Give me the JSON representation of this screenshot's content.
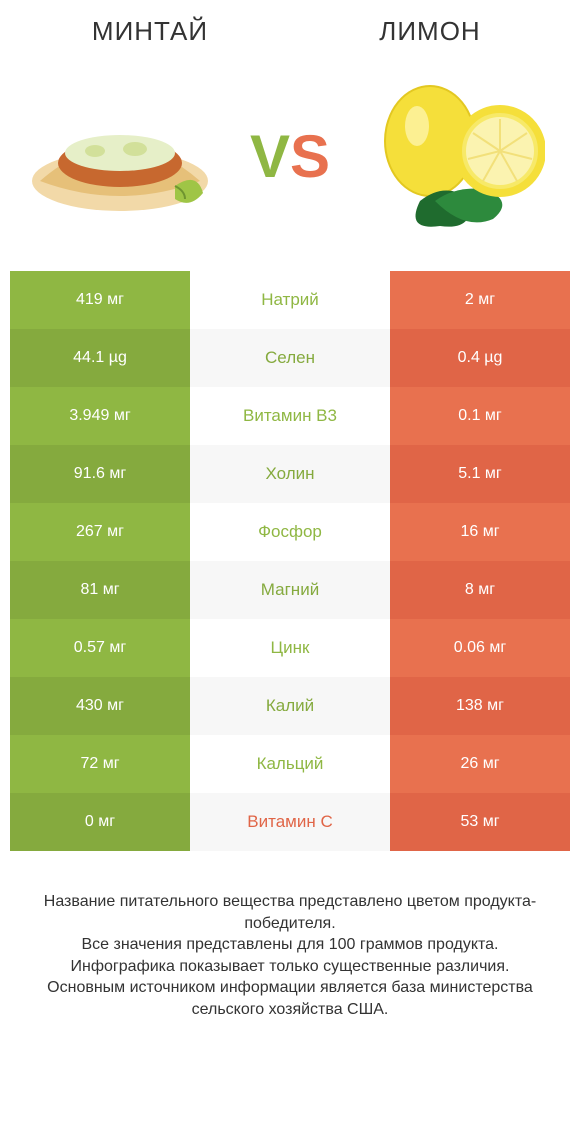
{
  "header": {
    "left": "МИНТАЙ",
    "right": "ЛИМОН"
  },
  "vs": {
    "v": "V",
    "s": "S"
  },
  "colors": {
    "green_a": "#8fb743",
    "green_b": "#85aa3e",
    "orange_a": "#e8714f",
    "orange_b": "#e06547",
    "text_dark": "#333333",
    "white": "#ffffff"
  },
  "rows": [
    {
      "left": "419 мг",
      "mid": "Натрий",
      "right": "2 мг",
      "winner": "left"
    },
    {
      "left": "44.1 µg",
      "mid": "Селен",
      "right": "0.4 µg",
      "winner": "left"
    },
    {
      "left": "3.949 мг",
      "mid": "Витамин B3",
      "right": "0.1 мг",
      "winner": "left"
    },
    {
      "left": "91.6 мг",
      "mid": "Холин",
      "right": "5.1 мг",
      "winner": "left"
    },
    {
      "left": "267 мг",
      "mid": "Фосфор",
      "right": "16 мг",
      "winner": "left"
    },
    {
      "left": "81 мг",
      "mid": "Магний",
      "right": "8 мг",
      "winner": "left"
    },
    {
      "left": "0.57 мг",
      "mid": "Цинк",
      "right": "0.06 мг",
      "winner": "left"
    },
    {
      "left": "430 мг",
      "mid": "Калий",
      "right": "138 мг",
      "winner": "left"
    },
    {
      "left": "72 мг",
      "mid": "Кальций",
      "right": "26 мг",
      "winner": "left"
    },
    {
      "left": "0 мг",
      "mid": "Витамин C",
      "right": "53 мг",
      "winner": "right"
    }
  ],
  "footer": {
    "line1": "Название питательного вещества представлено цветом продукта-победителя.",
    "line2": "Все значения представлены для 100 граммов продукта.",
    "line3": "Инфографика показывает только существенные различия.",
    "line4": "Основным источником информации является база министерства сельского хозяйства США."
  }
}
